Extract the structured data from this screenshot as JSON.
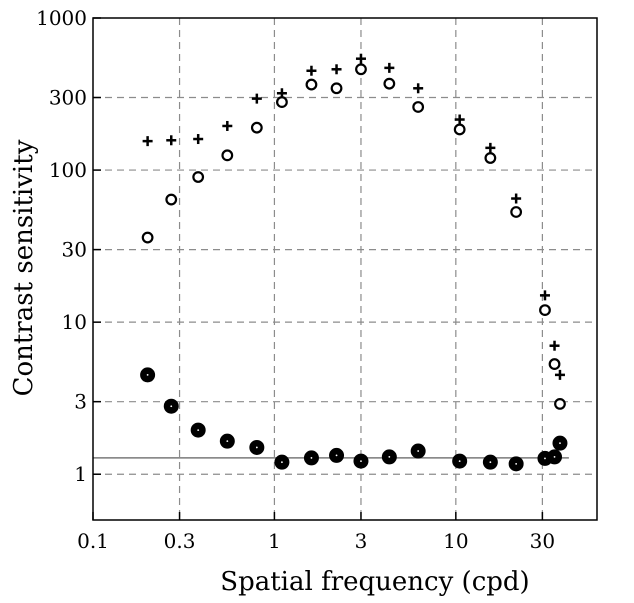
{
  "chart_data": {
    "type": "scatter",
    "xlabel": "Spatial frequency (cpd)",
    "ylabel": "Contrast sensitivity",
    "xscale": "log",
    "yscale": "log",
    "xlim": [
      0.1,
      60
    ],
    "ylim": [
      0.5,
      1000
    ],
    "grid": true,
    "x_ticks": [
      {
        "value": 0.1,
        "label": "0.1"
      },
      {
        "value": 0.3,
        "label": "0.3"
      },
      {
        "value": 1,
        "label": "1"
      },
      {
        "value": 3,
        "label": "3"
      },
      {
        "value": 10,
        "label": "10"
      },
      {
        "value": 30,
        "label": "30"
      }
    ],
    "y_ticks": [
      {
        "value": 1,
        "label": "1"
      },
      {
        "value": 3,
        "label": "3"
      },
      {
        "value": 10,
        "label": "10"
      },
      {
        "value": 30,
        "label": "30"
      },
      {
        "value": 100,
        "label": "100"
      },
      {
        "value": 300,
        "label": "300"
      },
      {
        "value": 1000,
        "label": "1000"
      }
    ],
    "reference_line": {
      "y": 1.28
    },
    "series": [
      {
        "marker": "plus",
        "points": [
          [
            0.2,
            155
          ],
          [
            0.27,
            157
          ],
          [
            0.38,
            160
          ],
          [
            0.55,
            195
          ],
          [
            0.8,
            295
          ],
          [
            1.1,
            320
          ],
          [
            1.6,
            450
          ],
          [
            2.2,
            460
          ],
          [
            3.0,
            540
          ],
          [
            4.3,
            470
          ],
          [
            6.2,
            345
          ],
          [
            10.5,
            215
          ],
          [
            15.5,
            140
          ],
          [
            21.5,
            65
          ],
          [
            31,
            15
          ],
          [
            35,
            7
          ],
          [
            37.5,
            4.5
          ]
        ]
      },
      {
        "marker": "open-circle",
        "points": [
          [
            0.2,
            36
          ],
          [
            0.27,
            64
          ],
          [
            0.38,
            90
          ],
          [
            0.55,
            125
          ],
          [
            0.8,
            190
          ],
          [
            1.1,
            280
          ],
          [
            1.6,
            365
          ],
          [
            2.2,
            345
          ],
          [
            3.0,
            460
          ],
          [
            4.3,
            370
          ],
          [
            6.2,
            260
          ],
          [
            10.5,
            185
          ],
          [
            15.5,
            120
          ],
          [
            21.5,
            53
          ],
          [
            31,
            12
          ],
          [
            35,
            5.3
          ],
          [
            37.5,
            2.9
          ]
        ]
      },
      {
        "marker": "filled-circle",
        "points": [
          [
            0.2,
            4.5
          ],
          [
            0.27,
            2.8
          ],
          [
            0.38,
            1.95
          ],
          [
            0.55,
            1.65
          ],
          [
            0.8,
            1.5
          ],
          [
            1.1,
            1.2
          ],
          [
            1.6,
            1.28
          ],
          [
            2.2,
            1.33
          ],
          [
            3.0,
            1.22
          ],
          [
            4.3,
            1.3
          ],
          [
            6.2,
            1.42
          ],
          [
            10.5,
            1.22
          ],
          [
            15.5,
            1.2
          ],
          [
            21.5,
            1.17
          ],
          [
            31,
            1.27
          ],
          [
            35,
            1.3
          ],
          [
            37.5,
            1.6
          ]
        ]
      }
    ]
  }
}
